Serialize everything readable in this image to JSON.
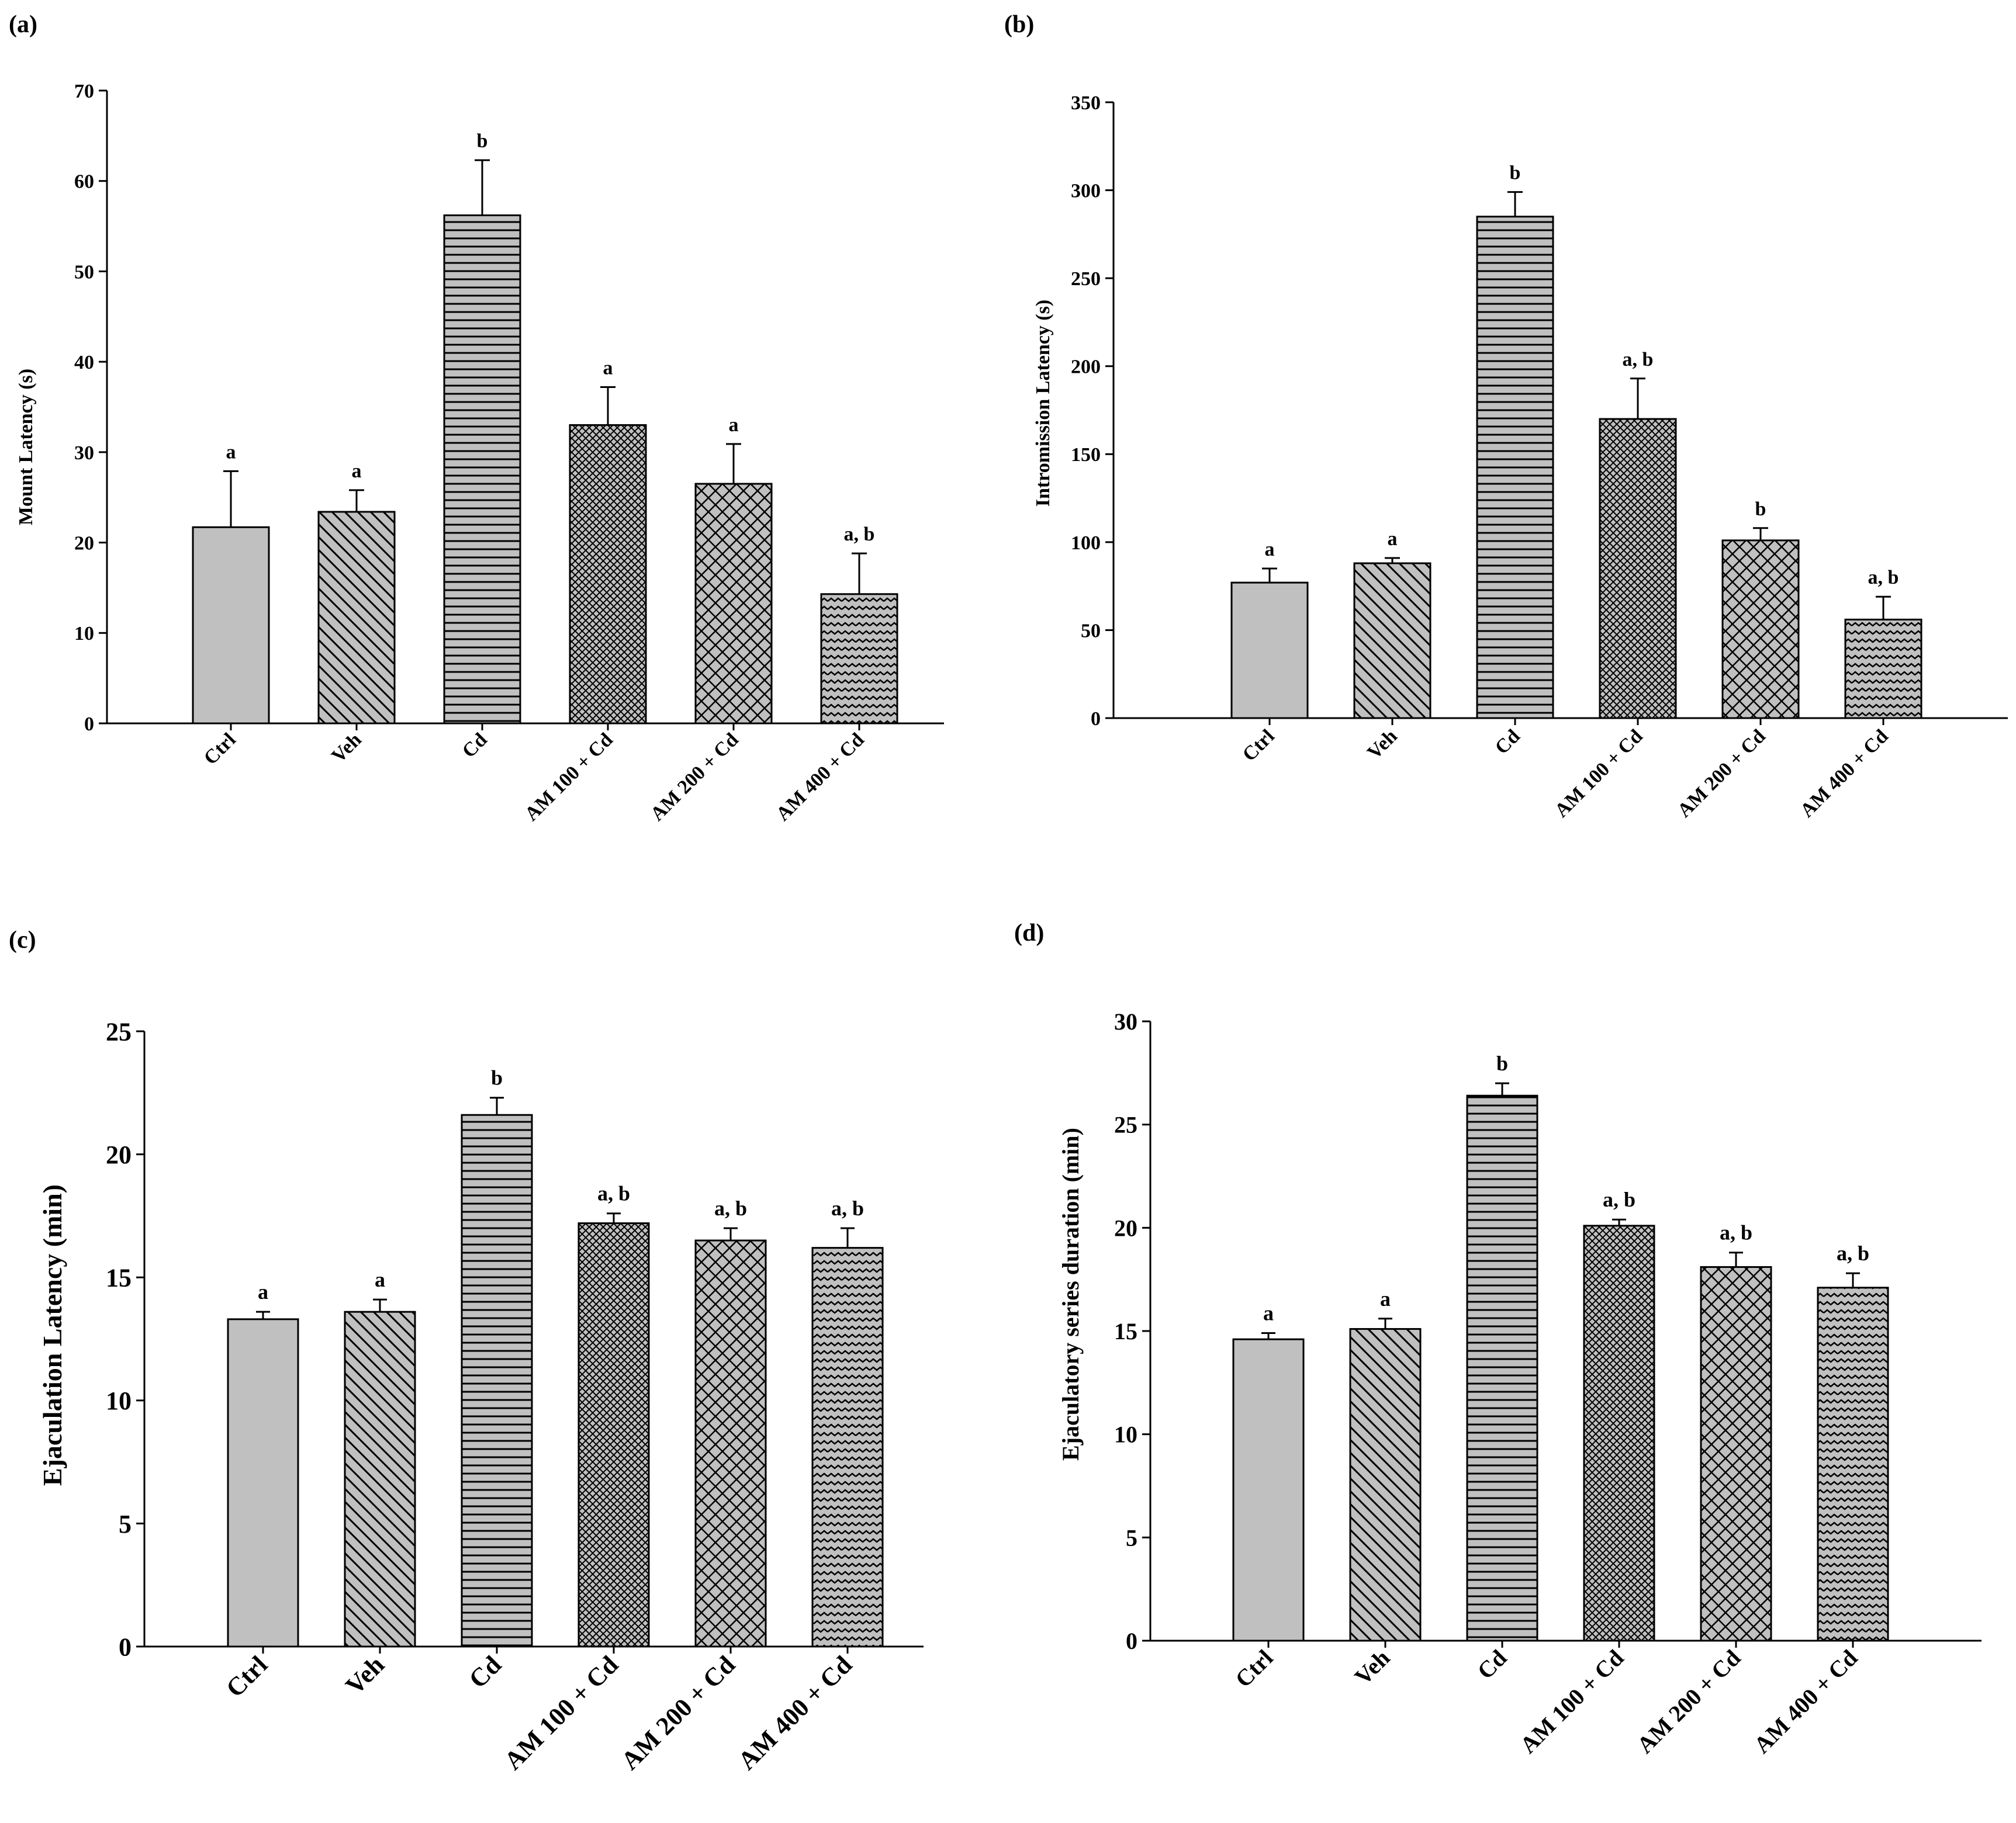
{
  "chart_data": [
    {
      "panel_label": "(a)",
      "type": "bar",
      "title": "",
      "xlabel": "",
      "ylabel": "Mount Latency (s)",
      "ylim": [
        0,
        70
      ],
      "yticks": [
        0,
        10,
        20,
        30,
        40,
        50,
        60,
        70
      ],
      "categories": [
        "Ctrl",
        "Veh",
        "Cd",
        "AM 100 + Cd",
        "AM 200 + Cd",
        "AM 400 + Cd"
      ],
      "values": [
        21.7,
        23.4,
        56.2,
        33.0,
        26.5,
        14.3
      ],
      "errors": [
        6.2,
        2.4,
        6.1,
        4.2,
        4.4,
        4.5
      ],
      "annotations": [
        "a",
        "a",
        "b",
        "a",
        "a",
        "a, b"
      ],
      "patterns": [
        "solid",
        "diag",
        "horiz",
        "crossfine",
        "crosscoarse",
        "wave"
      ]
    },
    {
      "panel_label": "(b)",
      "type": "bar",
      "title": "",
      "xlabel": "",
      "ylabel": "Intromission Latency (s)",
      "ylim": [
        0,
        350
      ],
      "yticks": [
        0,
        50,
        100,
        150,
        200,
        250,
        300,
        350
      ],
      "categories": [
        "Ctrl",
        "Veh",
        "Cd",
        "AM 100 + Cd",
        "AM 200 + Cd",
        "AM  400 + Cd"
      ],
      "values": [
        77,
        88,
        285,
        170,
        101,
        56
      ],
      "errors": [
        8,
        3,
        14,
        23,
        7,
        13
      ],
      "annotations": [
        "a",
        "a",
        "b",
        "a, b",
        "b",
        "a, b"
      ],
      "patterns": [
        "solid",
        "diag",
        "horiz",
        "crossfine",
        "crosscoarse",
        "wave"
      ]
    },
    {
      "panel_label": "(c)",
      "type": "bar",
      "title": "",
      "xlabel": "",
      "ylabel": "Ejaculation Latency (min)",
      "ylim": [
        0,
        25
      ],
      "yticks": [
        0,
        5,
        10,
        15,
        20,
        25
      ],
      "categories": [
        "Ctrl",
        "Veh",
        "Cd",
        "AM 100 + Cd",
        "AM 200 + Cd",
        "AM 400 + Cd"
      ],
      "values": [
        13.3,
        13.6,
        21.6,
        17.2,
        16.5,
        16.2
      ],
      "errors": [
        0.3,
        0.5,
        0.7,
        0.4,
        0.5,
        0.8
      ],
      "annotations": [
        "a",
        "a",
        "b",
        "a, b",
        "a, b",
        "a, b"
      ],
      "patterns": [
        "solid",
        "diag",
        "horiz",
        "crossfine",
        "crosscoarse",
        "wave"
      ]
    },
    {
      "panel_label": "(d)",
      "type": "bar",
      "title": "",
      "xlabel": "",
      "ylabel": "Ejaculatory series duration (min)",
      "ylim": [
        0,
        30
      ],
      "yticks": [
        0,
        5,
        10,
        15,
        20,
        25,
        30
      ],
      "categories": [
        "Ctrl",
        "Veh",
        "Cd",
        "AM 100 + Cd",
        "AM 200 + Cd",
        "AM 400 + Cd"
      ],
      "values": [
        14.6,
        15.1,
        26.4,
        20.1,
        18.1,
        17.1
      ],
      "errors": [
        0.3,
        0.5,
        0.6,
        0.3,
        0.7,
        0.7
      ],
      "annotations": [
        "a",
        "a",
        "b",
        "a, b",
        "a, b",
        "a, b"
      ],
      "patterns": [
        "solid",
        "diag",
        "horiz",
        "crossfine",
        "crosscoarse",
        "wave"
      ]
    }
  ],
  "colors": {
    "bar_fill": "#c0c0c0",
    "stroke": "#000000",
    "background": "#ffffff"
  }
}
